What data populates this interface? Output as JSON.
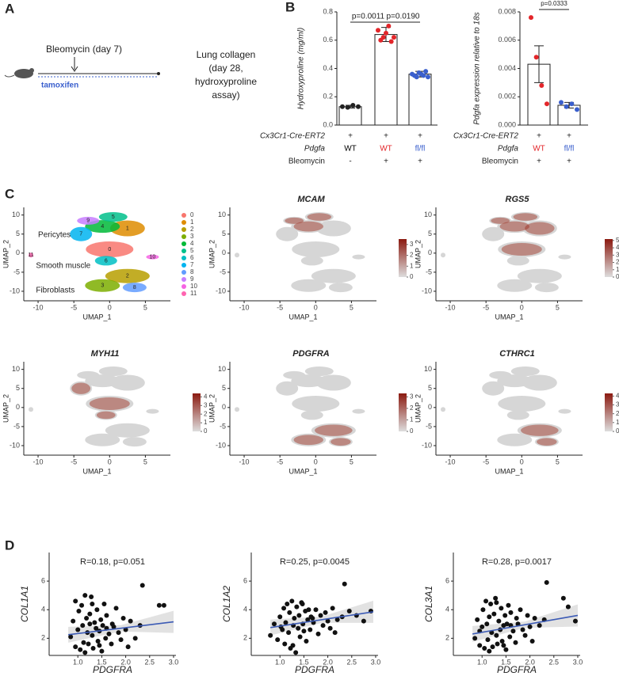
{
  "panel_labels": [
    "A",
    "B",
    "C",
    "D"
  ],
  "panel_a": {
    "injury": "Bleomycin (day 7)",
    "induction": "tamoxifen",
    "readout": [
      "Lung collagen",
      "(day 28,",
      "hydroxyproline",
      "assay)"
    ]
  },
  "chart_data": [
    {
      "type": "bar",
      "ylabel": "Hydroxyproline (mg/ml)",
      "values": [
        0.13,
        0.64,
        0.36
      ],
      "errors": [
        0.01,
        0.05,
        0.02
      ],
      "points": [
        [
          0.13,
          0.125,
          0.14,
          0.13
        ],
        [
          0.67,
          0.6,
          0.62,
          0.65,
          0.7,
          0.59,
          0.62
        ],
        [
          0.36,
          0.35,
          0.34,
          0.37,
          0.36,
          0.35,
          0.38,
          0.34
        ]
      ],
      "point_colors": [
        "#222222",
        "#e3262a",
        "#3a5fcd"
      ],
      "ylim": [
        0,
        0.8
      ],
      "yticks": [
        {
          "value": 0,
          "label": "0.0"
        },
        0.2,
        0.4,
        0.6,
        0.8
      ],
      "comparisons": [
        "p=0.0011",
        "p=0.0190"
      ],
      "condition_rows": [
        {
          "name": "Cx3Cr1-Cre-ERT2",
          "labels": [
            "+",
            "+",
            "+"
          ]
        },
        {
          "name": "Pdgfa",
          "labels": [
            "WT",
            "WT",
            "fl/fl"
          ],
          "colors": [
            "#000000",
            "#e3262a",
            "#3a5fcd"
          ]
        },
        {
          "name": "Bleomycin",
          "labels": [
            "-",
            "+",
            "+"
          ]
        }
      ]
    },
    {
      "type": "bar",
      "ylabel": "Pdgfa expression relative to 18s",
      "values": [
        0.0043,
        0.0014
      ],
      "errors": [
        0.0013,
        0.0002
      ],
      "points": [
        [
          0.0076,
          0.0048,
          0.0028,
          0.0015
        ],
        [
          0.0016,
          0.0013,
          0.0015,
          0.0011
        ]
      ],
      "point_colors": [
        "#e3262a",
        "#3a5fcd"
      ],
      "ylim": [
        0,
        0.008
      ],
      "yticks": [
        {
          "value": 0,
          "label": "0.000"
        },
        {
          "value": 0.002,
          "label": "0.002"
        },
        {
          "value": 0.004,
          "label": "0.004"
        },
        {
          "value": 0.006,
          "label": "0.006"
        },
        {
          "value": 0.008,
          "label": "0.008"
        }
      ],
      "comparisons": [
        "p=0.0333"
      ],
      "condition_rows": [
        {
          "name": "Cx3Cr1-Cre-ERT2",
          "labels": [
            "+",
            "+"
          ]
        },
        {
          "name": "Pdgfa",
          "labels": [
            "WT",
            "fl/fl"
          ],
          "colors": [
            "#e3262a",
            "#3a5fcd"
          ]
        },
        {
          "name": "Bleomycin",
          "labels": [
            "+",
            "+"
          ]
        }
      ]
    },
    {
      "type": "umap",
      "xlabel": "UMAP_1",
      "ylabel": "UMAP_2",
      "xlim": [
        -12,
        8.5
      ],
      "ylim": [
        -12.5,
        12
      ],
      "xticks": [
        -10,
        -5,
        0,
        5
      ],
      "yticks": [
        -10,
        -5,
        0,
        5,
        10
      ],
      "clusters": {
        "names": [
          "0",
          "1",
          "2",
          "3",
          "4",
          "5",
          "6",
          "7",
          "8",
          "9",
          "10",
          "11"
        ],
        "colors": [
          "#F8766D",
          "#DE8C00",
          "#B79F00",
          "#7CAE00",
          "#00BA38",
          "#00C08B",
          "#00BFC4",
          "#00B4F0",
          "#619CFF",
          "#C77CFF",
          "#F564E3",
          "#FF64B0"
        ],
        "x": [
          0,
          2.5,
          2.5,
          -1,
          -1,
          0.5,
          -0.5,
          -4,
          3.5,
          -3,
          6,
          -11
        ],
        "y": [
          1,
          6.5,
          -6,
          -8.5,
          7,
          9.5,
          -2,
          5,
          -9,
          8.5,
          -1,
          -0.5
        ]
      },
      "annotations": [
        "Pericytes",
        "Smooth muscle",
        "Fibroblasts"
      ]
    },
    {
      "type": "feature",
      "title": "MCAM",
      "xlabel": "UMAP_1",
      "ylabel": "UMAP_2",
      "xlim": [
        -12,
        8.5
      ],
      "ylim": [
        -12.5,
        12
      ],
      "xticks": [
        -10,
        -5,
        0,
        5
      ],
      "yticks": [
        -10,
        -5,
        0,
        5,
        10
      ],
      "clim": [
        0,
        3.5
      ],
      "cticks": [
        0,
        1,
        2,
        3
      ]
    },
    {
      "type": "feature",
      "title": "RGS5",
      "xlabel": "UMAP_1",
      "ylabel": "UMAP_2",
      "xlim": [
        -12,
        8.5
      ],
      "ylim": [
        -12.5,
        12
      ],
      "xticks": [
        -10,
        -5,
        0,
        5
      ],
      "yticks": [
        -10,
        -5,
        0,
        5,
        10
      ],
      "clim": [
        0,
        5.2
      ],
      "cticks": [
        0,
        1,
        2,
        3,
        4,
        5
      ]
    },
    {
      "type": "feature",
      "title": "MYH11",
      "xlabel": "UMAP_1",
      "ylabel": "UMAP_2",
      "xlim": [
        -12,
        8.5
      ],
      "ylim": [
        -12.5,
        12
      ],
      "xticks": [
        -10,
        -5,
        0,
        5
      ],
      "yticks": [
        -10,
        -5,
        0,
        5,
        10
      ],
      "clim": [
        0,
        4.4
      ],
      "cticks": [
        0,
        1,
        2,
        3,
        4
      ]
    },
    {
      "type": "feature",
      "title": "PDGFRA",
      "xlabel": "UMAP_1",
      "ylabel": "UMAP_2",
      "xlim": [
        -12,
        8.5
      ],
      "ylim": [
        -12.5,
        12
      ],
      "xticks": [
        -10,
        -5,
        0,
        5
      ],
      "yticks": [
        -10,
        -5,
        0,
        5,
        10
      ],
      "clim": [
        0,
        3.3
      ],
      "cticks": [
        0,
        1,
        2,
        3
      ]
    },
    {
      "type": "feature",
      "title": "CTHRC1",
      "xlabel": "UMAP_1",
      "ylabel": "UMAP_2",
      "xlim": [
        -12,
        8.5
      ],
      "ylim": [
        -12.5,
        12
      ],
      "xticks": [
        -10,
        -5,
        0,
        5
      ],
      "yticks": [
        -10,
        -5,
        0,
        5,
        10
      ],
      "clim": [
        0,
        4.3
      ],
      "cticks": [
        0,
        1,
        2,
        3,
        4
      ]
    },
    {
      "type": "scatter",
      "title": "R=0.18, p=0.051",
      "xlabel": "PDGFRA",
      "ylabel": "COL1A1",
      "xlim": [
        0.4,
        3.05
      ],
      "ylim": [
        0.8,
        8
      ],
      "xticks": [
        {
          "value": 1,
          "label": "1.0"
        },
        1.5,
        {
          "value": 2,
          "label": "2.0"
        },
        2.5,
        {
          "value": 3,
          "label": "3.0"
        }
      ],
      "yticks": [
        2,
        4,
        6
      ],
      "x": [
        0.85,
        0.9,
        0.95,
        1.0,
        1.02,
        1.05,
        1.08,
        1.1,
        1.12,
        1.15,
        1.18,
        1.2,
        1.22,
        1.25,
        1.28,
        1.3,
        1.32,
        1.35,
        1.38,
        1.4,
        1.42,
        1.45,
        1.48,
        1.5,
        1.52,
        1.55,
        1.58,
        1.6,
        1.65,
        1.7,
        1.72,
        1.75,
        1.8,
        1.85,
        1.9,
        1.95,
        2.0,
        2.05,
        2.1,
        2.2,
        2.3,
        2.35,
        2.7,
        2.8,
        0.95,
        1.15,
        1.3,
        1.45,
        1.6,
        1.25
      ],
      "y": [
        2.1,
        3.2,
        1.4,
        2.6,
        3.9,
        1.2,
        4.3,
        2.9,
        1.7,
        5.0,
        3.4,
        2.4,
        1.6,
        3.7,
        4.9,
        2.2,
        1.3,
        3.1,
        2.7,
        4.0,
        1.8,
        2.5,
        3.3,
        1.1,
        2.9,
        4.4,
        2.0,
        3.6,
        2.3,
        1.6,
        3.0,
        2.8,
        4.1,
        2.4,
        1.9,
        3.4,
        2.6,
        1.4,
        3.2,
        2.0,
        2.9,
        5.7,
        4.3,
        4.3,
        4.6,
        1.0,
        4.4,
        1.5,
        2.7,
        3.0
      ],
      "fit": {
        "x": [
          0.8,
          3.0
        ],
        "y": [
          2.25,
          3.15
        ]
      },
      "color": "#3c5bb5"
    },
    {
      "type": "scatter",
      "title": "R=0.25, p=0.0045",
      "xlabel": "PDGFRA",
      "ylabel": "COL1A2",
      "xlim": [
        0.4,
        3.05
      ],
      "ylim": [
        0.8,
        8
      ],
      "xticks": [
        {
          "value": 1,
          "label": "1.0"
        },
        1.5,
        {
          "value": 2,
          "label": "2.0"
        },
        2.5,
        {
          "value": 3,
          "label": "3.0"
        }
      ],
      "yticks": [
        2,
        4,
        6
      ],
      "x": [
        0.8,
        0.88,
        0.95,
        1.0,
        1.05,
        1.08,
        1.1,
        1.12,
        1.15,
        1.18,
        1.2,
        1.22,
        1.25,
        1.28,
        1.3,
        1.33,
        1.35,
        1.38,
        1.4,
        1.42,
        1.45,
        1.48,
        1.5,
        1.53,
        1.55,
        1.58,
        1.6,
        1.63,
        1.65,
        1.7,
        1.75,
        1.8,
        1.85,
        1.9,
        1.95,
        2.0,
        2.05,
        2.1,
        2.15,
        2.2,
        2.3,
        2.35,
        2.45,
        2.6,
        2.75,
        2.9,
        1.02,
        1.27,
        1.47,
        1.68
      ],
      "y": [
        2.2,
        3.0,
        1.9,
        3.5,
        2.6,
        4.1,
        1.6,
        3.1,
        4.4,
        2.4,
        3.8,
        1.3,
        4.6,
        2.9,
        3.4,
        1.0,
        4.2,
        2.7,
        3.6,
        2.1,
        4.5,
        3.0,
        2.5,
        3.9,
        1.8,
        3.3,
        4.0,
        2.6,
        3.5,
        3.1,
        4.0,
        2.3,
        3.6,
        2.9,
        3.8,
        3.2,
        2.7,
        4.1,
        2.4,
        3.3,
        3.5,
        5.8,
        3.9,
        3.6,
        3.2,
        3.9,
        2.8,
        1.5,
        4.4,
        3.4
      ],
      "fit": {
        "x": [
          0.8,
          2.95
        ],
        "y": [
          2.75,
          3.85
        ]
      },
      "color": "#3c5bb5"
    },
    {
      "type": "scatter",
      "title": "R=0.28, p=0.0017",
      "xlabel": "PDGFRA",
      "ylabel": "COL3A1",
      "xlim": [
        0.4,
        3.05
      ],
      "ylim": [
        0.8,
        8
      ],
      "xticks": [
        {
          "value": 1,
          "label": "1.0"
        },
        1.5,
        {
          "value": 2,
          "label": "2.0"
        },
        2.5,
        {
          "value": 3,
          "label": "3.0"
        }
      ],
      "yticks": [
        2,
        4,
        6
      ],
      "x": [
        0.85,
        0.9,
        0.95,
        1.0,
        1.02,
        1.05,
        1.08,
        1.1,
        1.12,
        1.15,
        1.18,
        1.2,
        1.22,
        1.25,
        1.28,
        1.3,
        1.32,
        1.35,
        1.38,
        1.4,
        1.42,
        1.45,
        1.48,
        1.5,
        1.52,
        1.55,
        1.58,
        1.6,
        1.65,
        1.7,
        1.72,
        1.75,
        1.8,
        1.85,
        1.9,
        1.95,
        2.0,
        2.05,
        2.1,
        2.2,
        2.3,
        2.35,
        2.7,
        2.8,
        0.95,
        1.15,
        1.3,
        1.45,
        1.6,
        2.95
      ],
      "y": [
        2.0,
        3.3,
        1.5,
        2.8,
        4.0,
        1.3,
        4.6,
        3.0,
        1.9,
        3.5,
        4.4,
        2.4,
        1.4,
        3.7,
        4.8,
        2.2,
        1.6,
        3.2,
        2.6,
        4.1,
        1.8,
        2.9,
        3.6,
        1.2,
        3.0,
        4.3,
        2.1,
        3.8,
        2.5,
        1.7,
        3.4,
        3.0,
        4.0,
        2.6,
        2.2,
        3.6,
        2.8,
        1.8,
        3.4,
        2.9,
        3.3,
        5.9,
        4.8,
        4.2,
        2.5,
        1.1,
        4.5,
        1.5,
        2.9,
        3.2
      ],
      "fit": {
        "x": [
          0.8,
          3.0
        ],
        "y": [
          2.3,
          3.6
        ]
      },
      "color": "#3c5bb5"
    }
  ]
}
